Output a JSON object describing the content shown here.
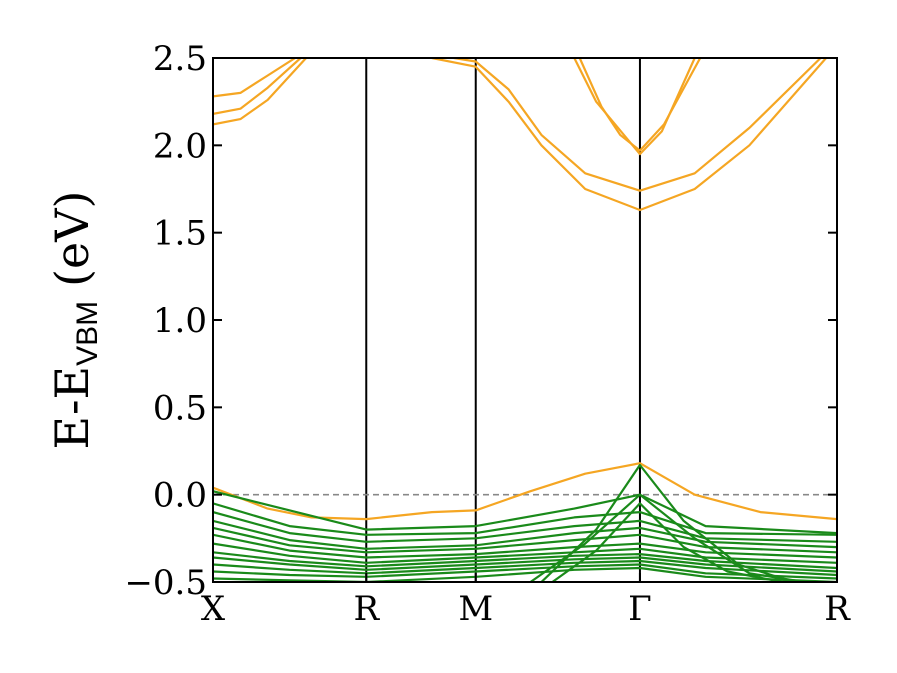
{
  "chart_data": {
    "type": "line",
    "title": "",
    "ylabel": "E-E",
    "ylabel_subscript": "VBM",
    "ylabel_unit": "(eV)",
    "ylim": [
      -0.5,
      2.5
    ],
    "yticks": [
      -0.5,
      0.0,
      0.5,
      1.0,
      1.5,
      2.0,
      2.5
    ],
    "ytick_labels": [
      "−0.5",
      "0.0",
      "0.5",
      "1.0",
      "1.5",
      "2.0",
      "2.5"
    ],
    "xlim": [
      0,
      5.7
    ],
    "kpoints": [
      {
        "label": "X",
        "x": 0.0
      },
      {
        "label": "R",
        "x": 1.4
      },
      {
        "label": "M",
        "x": 2.4
      },
      {
        "label": "Γ",
        "x": 3.9
      },
      {
        "label": "R",
        "x": 5.7
      }
    ],
    "reference_line": {
      "y": 0.0,
      "style": "dashed",
      "color": "#888888"
    },
    "colors": {
      "conduction": "#f5a623",
      "valence": "#1a8a1a",
      "kline": "#000000"
    },
    "series": [
      {
        "band": "conduction",
        "x": [
          0,
          0.5,
          0.9,
          1.4,
          2.0,
          2.4,
          2.9,
          3.4,
          3.9,
          4.4,
          5.0,
          5.7
        ],
        "y": [
          0.04,
          -0.08,
          -0.13,
          -0.14,
          -0.1,
          -0.09,
          0.02,
          0.12,
          0.18,
          0.0,
          -0.1,
          -0.14
        ]
      },
      {
        "band": "conduction",
        "x": [
          0,
          0.25,
          0.5,
          0.85
        ],
        "y": [
          2.12,
          2.15,
          2.26,
          2.5
        ]
      },
      {
        "band": "conduction",
        "x": [
          0,
          0.25,
          0.5,
          0.8
        ],
        "y": [
          2.18,
          2.21,
          2.33,
          2.5
        ]
      },
      {
        "band": "conduction",
        "x": [
          0,
          0.25,
          0.5,
          0.75
        ],
        "y": [
          2.28,
          2.3,
          2.4,
          2.5
        ]
      },
      {
        "band": "conduction",
        "x": [
          2.0,
          2.4,
          2.7,
          3.0,
          3.4,
          3.9,
          4.4,
          4.9,
          5.6
        ],
        "y": [
          2.5,
          2.45,
          2.25,
          2.0,
          1.75,
          1.63,
          1.75,
          2.0,
          2.5
        ]
      },
      {
        "band": "conduction",
        "x": [
          2.2,
          2.4,
          2.7,
          3.0,
          3.4,
          3.9,
          4.4,
          4.9,
          5.55
        ],
        "y": [
          2.5,
          2.48,
          2.32,
          2.06,
          1.84,
          1.74,
          1.84,
          2.1,
          2.5
        ]
      },
      {
        "band": "conduction",
        "x": [
          3.3,
          3.5,
          3.7,
          3.9,
          4.1,
          4.4
        ],
        "y": [
          2.5,
          2.25,
          2.1,
          1.95,
          2.08,
          2.5
        ]
      },
      {
        "band": "conduction",
        "x": [
          3.35,
          3.55,
          3.72,
          3.9,
          4.12,
          4.45
        ],
        "y": [
          2.5,
          2.22,
          2.06,
          1.97,
          2.12,
          2.5
        ]
      },
      {
        "band": "valence",
        "x": [
          0,
          1.4,
          2.4,
          3.3,
          3.9,
          4.5,
          5.7
        ],
        "y": [
          0.02,
          -0.2,
          -0.18,
          -0.08,
          0.0,
          -0.18,
          -0.22
        ]
      },
      {
        "band": "valence",
        "x": [
          0,
          0.7,
          1.4,
          2.4,
          3.3,
          3.9,
          4.5,
          5.7
        ],
        "y": [
          -0.05,
          -0.18,
          -0.23,
          -0.22,
          -0.13,
          -0.1,
          -0.22,
          -0.23
        ]
      },
      {
        "band": "valence",
        "x": [
          0,
          0.7,
          1.4,
          2.4,
          3.3,
          3.9,
          4.5,
          5.7
        ],
        "y": [
          -0.1,
          -0.22,
          -0.27,
          -0.25,
          -0.18,
          -0.15,
          -0.25,
          -0.27
        ]
      },
      {
        "band": "valence",
        "x": [
          0,
          0.7,
          1.4,
          2.4,
          3.3,
          3.9,
          4.5,
          5.7
        ],
        "y": [
          -0.15,
          -0.26,
          -0.31,
          -0.29,
          -0.22,
          -0.19,
          -0.27,
          -0.3
        ]
      },
      {
        "band": "valence",
        "x": [
          0,
          0.7,
          1.4,
          2.4,
          3.3,
          3.9,
          4.5,
          5.7
        ],
        "y": [
          -0.19,
          -0.29,
          -0.33,
          -0.31,
          -0.26,
          -0.23,
          -0.3,
          -0.33
        ]
      },
      {
        "band": "valence",
        "x": [
          0,
          0.7,
          1.4,
          2.4,
          3.3,
          3.9,
          4.5,
          5.7
        ],
        "y": [
          -0.23,
          -0.32,
          -0.36,
          -0.34,
          -0.3,
          -0.28,
          -0.33,
          -0.36
        ]
      },
      {
        "band": "valence",
        "x": [
          0,
          0.7,
          1.4,
          2.4,
          3.3,
          3.9,
          4.5,
          5.7
        ],
        "y": [
          -0.28,
          -0.35,
          -0.39,
          -0.36,
          -0.33,
          -0.31,
          -0.36,
          -0.39
        ]
      },
      {
        "band": "valence",
        "x": [
          0,
          0.7,
          1.4,
          2.4,
          3.3,
          3.9,
          4.5,
          5.7
        ],
        "y": [
          -0.33,
          -0.38,
          -0.41,
          -0.38,
          -0.35,
          -0.34,
          -0.38,
          -0.42
        ]
      },
      {
        "band": "valence",
        "x": [
          0,
          0.7,
          1.4,
          2.4,
          3.3,
          3.9,
          4.5,
          5.7
        ],
        "y": [
          -0.36,
          -0.4,
          -0.43,
          -0.4,
          -0.37,
          -0.36,
          -0.4,
          -0.44
        ]
      },
      {
        "band": "valence",
        "x": [
          0,
          0.7,
          1.4,
          2.4,
          3.3,
          3.9,
          4.5,
          5.7
        ],
        "y": [
          -0.4,
          -0.43,
          -0.45,
          -0.42,
          -0.39,
          -0.38,
          -0.42,
          -0.46
        ]
      },
      {
        "band": "valence",
        "x": [
          0,
          0.7,
          1.4,
          2.4,
          3.3,
          3.9,
          4.5,
          5.7
        ],
        "y": [
          -0.44,
          -0.46,
          -0.47,
          -0.44,
          -0.41,
          -0.4,
          -0.45,
          -0.48
        ]
      },
      {
        "band": "valence",
        "x": [
          0,
          0.7,
          1.4,
          2.4,
          3.3,
          3.9,
          4.5,
          5.7
        ],
        "y": [
          -0.48,
          -0.49,
          -0.5,
          -0.47,
          -0.43,
          -0.42,
          -0.47,
          -0.5
        ]
      },
      {
        "band": "valence",
        "x": [
          3.0,
          3.5,
          3.9,
          4.3,
          4.8,
          5.3
        ],
        "y": [
          -0.5,
          -0.2,
          0.17,
          -0.15,
          -0.4,
          -0.5
        ]
      },
      {
        "band": "valence",
        "x": [
          2.9,
          3.4,
          3.9,
          4.4,
          4.9,
          5.4
        ],
        "y": [
          -0.5,
          -0.28,
          0.0,
          -0.25,
          -0.45,
          -0.5
        ]
      },
      {
        "band": "valence",
        "x": [
          3.1,
          3.5,
          3.9,
          4.3,
          4.7,
          5.2
        ],
        "y": [
          -0.5,
          -0.32,
          -0.05,
          -0.3,
          -0.44,
          -0.5
        ]
      }
    ]
  }
}
